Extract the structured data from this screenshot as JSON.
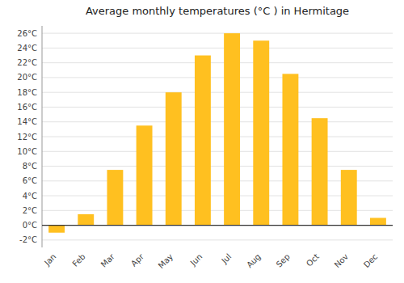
{
  "chart_data": {
    "type": "bar",
    "title": "Average monthly temperatures (°C ) in Hermitage",
    "categories": [
      "Jan",
      "Feb",
      "Mar",
      "Apr",
      "May",
      "Jun",
      "Jul",
      "Aug",
      "Sep",
      "Oct",
      "Nov",
      "Dec"
    ],
    "values": [
      -1.0,
      1.5,
      7.5,
      13.5,
      18.0,
      23.0,
      26.0,
      25.0,
      20.5,
      14.5,
      7.5,
      1.0
    ],
    "color": "#FFC020",
    "ylim": [
      -3,
      27
    ],
    "yticks": [
      {
        "value": -2,
        "label": "-2°C"
      },
      {
        "value": 0,
        "label": "0°C"
      },
      {
        "value": 2,
        "label": "2°C"
      },
      {
        "value": 4,
        "label": "4°C"
      },
      {
        "value": 6,
        "label": "6°C"
      },
      {
        "value": 8,
        "label": "8°C"
      },
      {
        "value": 10,
        "label": "10°C"
      },
      {
        "value": 12,
        "label": "12°C"
      },
      {
        "value": 14,
        "label": "14°C"
      },
      {
        "value": 16,
        "label": "16°C"
      },
      {
        "value": 18,
        "label": "18°C"
      },
      {
        "value": 20,
        "label": "20°C"
      },
      {
        "value": 22,
        "label": "22°C"
      },
      {
        "value": 24,
        "label": "24°C"
      },
      {
        "value": 26,
        "label": "26°C"
      }
    ],
    "grid": true
  }
}
